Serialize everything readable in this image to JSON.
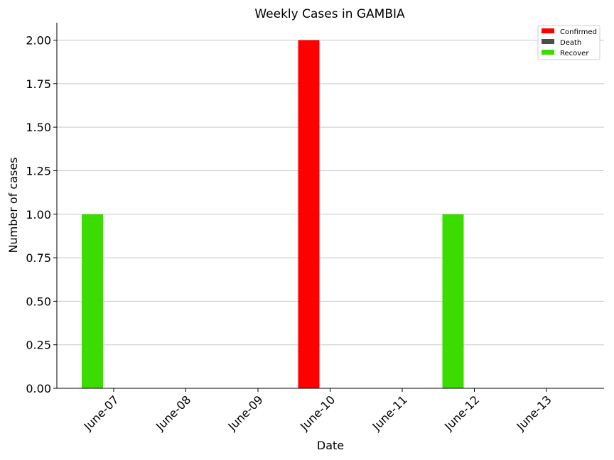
{
  "chart_data": {
    "type": "bar",
    "title": "Weekly Cases in GAMBIA",
    "xlabel": "Date",
    "ylabel": "Number of cases",
    "categories": [
      "June-07",
      "June-08",
      "June-09",
      "June-10",
      "June-11",
      "June-12",
      "June-13"
    ],
    "series": [
      {
        "name": "Confirmed",
        "color": "#ff0000",
        "values": [
          0,
          0,
          0,
          2,
          0,
          0,
          0
        ]
      },
      {
        "name": "Death",
        "color": "#4d4d4d",
        "values": [
          0,
          0,
          0,
          0,
          0,
          0,
          0
        ]
      },
      {
        "name": "Recover",
        "color": "#3cdc00",
        "values": [
          1,
          0,
          0,
          0,
          0,
          1,
          0
        ]
      }
    ],
    "ylim": [
      0,
      2.1
    ],
    "yticks": [
      "0.00",
      "0.25",
      "0.50",
      "0.75",
      "1.00",
      "1.25",
      "1.50",
      "1.75",
      "2.00"
    ],
    "grid": "horizontal",
    "legend_position": "top-right"
  }
}
